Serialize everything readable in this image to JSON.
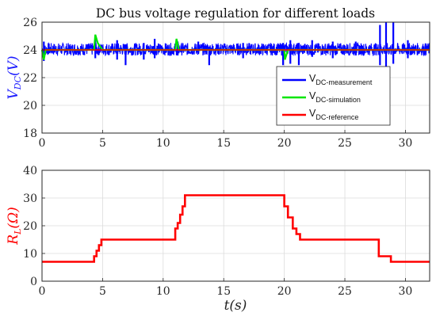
{
  "colors": {
    "measurement": "#0000FF",
    "simulation": "#00E600",
    "reference": "#FF0000",
    "resistance": "#FF0000",
    "ylabel_top": "#1A1AFF",
    "ylabel_bottom": "#FF0000"
  },
  "chart_data": [
    {
      "type": "line",
      "title": "DC bus voltage regulation for different loads",
      "ylabel": "V_DC(V)",
      "ylabel_main": "V",
      "ylabel_sub": "DC",
      "ylabel_unit": "(V)",
      "xlabel": "",
      "xlim": [
        0,
        32
      ],
      "ylim": [
        18,
        26
      ],
      "xticks": [
        "0",
        "5",
        "10",
        "15",
        "20",
        "25",
        "30"
      ],
      "yticks": [
        "18",
        "20",
        "22",
        "24",
        "26"
      ],
      "grid": true,
      "legend_position": "center-right",
      "legend": [
        {
          "base": "V",
          "sub": "DC-measurement",
          "series": "measurement"
        },
        {
          "base": "V",
          "sub": "DC-simulation",
          "series": "simulation"
        },
        {
          "base": "V",
          "sub": "DC-reference",
          "series": "reference"
        }
      ],
      "series": [
        {
          "name": "V_DC-measurement",
          "key": "measurement",
          "note": "noisy around 24 V, band about 23.6–24.5 V",
          "nominal": 24,
          "band": [
            23.6,
            24.5
          ],
          "spikes": [
            {
              "x": 0.15,
              "lo": 23.2,
              "hi": 24.6
            },
            {
              "x": 4.4,
              "lo": 23.4,
              "hi": 25.0
            },
            {
              "x": 6.2,
              "lo": 23.3,
              "hi": 24.7
            },
            {
              "x": 6.9,
              "lo": 22.9,
              "hi": 24.4
            },
            {
              "x": 8.4,
              "lo": 23.3,
              "hi": 24.5
            },
            {
              "x": 9.3,
              "lo": 23.4,
              "hi": 24.8
            },
            {
              "x": 11.2,
              "lo": 23.6,
              "hi": 24.6
            },
            {
              "x": 12.9,
              "lo": 23.7,
              "hi": 24.6
            },
            {
              "x": 13.8,
              "lo": 22.9,
              "hi": 24.2
            },
            {
              "x": 16.6,
              "lo": 23.4,
              "hi": 24.5
            },
            {
              "x": 19.9,
              "lo": 22.9,
              "hi": 24.5
            },
            {
              "x": 20.5,
              "lo": 23.0,
              "hi": 24.7
            },
            {
              "x": 21.2,
              "lo": 22.9,
              "hi": 24.5
            },
            {
              "x": 22.3,
              "lo": 23.5,
              "hi": 24.7
            },
            {
              "x": 24.0,
              "lo": 23.4,
              "hi": 24.6
            },
            {
              "x": 25.9,
              "lo": 23.6,
              "hi": 24.6
            },
            {
              "x": 27.9,
              "lo": 22.9,
              "hi": 25.8
            },
            {
              "x": 28.4,
              "lo": 22.3,
              "hi": 26.0
            },
            {
              "x": 29.0,
              "lo": 23.0,
              "hi": 26.0
            },
            {
              "x": 30.2,
              "lo": 23.4,
              "hi": 24.7
            }
          ]
        },
        {
          "name": "V_DC-simulation",
          "key": "simulation",
          "nominal": 24,
          "x": [
            0,
            0.15,
            0.3,
            4.3,
            4.4,
            4.6,
            5.0,
            11.0,
            11.1,
            11.3,
            20.0,
            20.05,
            20.3,
            32
          ],
          "y": [
            24,
            23.3,
            24,
            24,
            25.1,
            24.5,
            24,
            24,
            24.8,
            24,
            24,
            23.3,
            24,
            24
          ]
        },
        {
          "name": "V_DC-reference",
          "key": "reference",
          "x": [
            0,
            32
          ],
          "y": [
            24,
            24
          ]
        }
      ]
    },
    {
      "type": "line",
      "title": "",
      "ylabel": "R_L(Ω)",
      "ylabel_main": "R",
      "ylabel_sub": "L",
      "ylabel_unit": "(Ω)",
      "xlabel": "t(s)",
      "xlim": [
        0,
        32
      ],
      "ylim": [
        0,
        40
      ],
      "xticks": [
        "0",
        "5",
        "10",
        "15",
        "20",
        "25",
        "30"
      ],
      "yticks": [
        "0",
        "10",
        "20",
        "30",
        "40"
      ],
      "grid": true,
      "series": [
        {
          "name": "R_L",
          "key": "resistance",
          "step_x": [
            0,
            4.3,
            4.5,
            4.7,
            4.9,
            11.0,
            11.2,
            11.4,
            11.6,
            11.8,
            20.0,
            20.3,
            20.7,
            21.0,
            21.3,
            27.8,
            28.8,
            32
          ],
          "step_y": [
            7,
            9,
            11,
            13,
            15,
            19,
            21,
            24,
            27,
            31,
            27,
            23,
            19,
            17,
            15,
            9,
            7,
            7
          ]
        }
      ]
    }
  ]
}
